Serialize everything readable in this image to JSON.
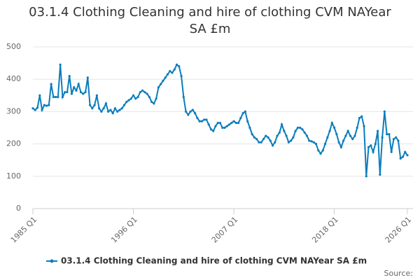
{
  "chart_data": {
    "type": "line",
    "title": "03.1.4 Clothing Cleaning and hire of clothing CVM NAYear SA £m",
    "source": "Source:",
    "categories": [
      "1985 Q1",
      null,
      null,
      null,
      null,
      null,
      null,
      null,
      null,
      null,
      null,
      null,
      null,
      null,
      null,
      null,
      null,
      null,
      null,
      null,
      null,
      null,
      null,
      null,
      null,
      null,
      null,
      null,
      null,
      null,
      null,
      null,
      null,
      null,
      null,
      null,
      null,
      null,
      null,
      null,
      null,
      null,
      null,
      null,
      "1996 Q1",
      null,
      null,
      null,
      null,
      null,
      null,
      null,
      null,
      null,
      null,
      null,
      null,
      null,
      null,
      null,
      null,
      null,
      null,
      null,
      null,
      null,
      null,
      null,
      null,
      null,
      null,
      null,
      null,
      null,
      null,
      null,
      null,
      null,
      null,
      null,
      null,
      null,
      null,
      null,
      null,
      null,
      null,
      null,
      "2007 Q1",
      null,
      null,
      null,
      null,
      null,
      null,
      null,
      null,
      null,
      null,
      null,
      null,
      null,
      null,
      null,
      null,
      null,
      null,
      null,
      null,
      null,
      null,
      null,
      null,
      null,
      null,
      null,
      null,
      null,
      null,
      null,
      null,
      null,
      null,
      null,
      null,
      null,
      null,
      null,
      null,
      null,
      null,
      null,
      "2018 Q1",
      null,
      null,
      null,
      null,
      null,
      null,
      null,
      null,
      null,
      null,
      null,
      null,
      null,
      null,
      null,
      null,
      null,
      null,
      null,
      null,
      null,
      null,
      null,
      null,
      null,
      null,
      null,
      null,
      null,
      null,
      null,
      "2026 Q1"
    ],
    "series": [
      {
        "name": "03.1.4 Clothing Cleaning and hire of clothing CVM NAYear SA £m",
        "color": "#0b7dbd",
        "values": [
          310,
          305,
          312,
          350,
          305,
          320,
          318,
          320,
          385,
          345,
          345,
          345,
          445,
          345,
          360,
          360,
          410,
          355,
          375,
          365,
          385,
          360,
          355,
          360,
          405,
          320,
          310,
          320,
          350,
          310,
          300,
          310,
          325,
          300,
          305,
          295,
          310,
          300,
          305,
          310,
          320,
          330,
          335,
          340,
          350,
          340,
          345,
          360,
          365,
          360,
          355,
          345,
          330,
          325,
          340,
          375,
          385,
          395,
          405,
          415,
          425,
          420,
          430,
          445,
          440,
          410,
          345,
          300,
          290,
          300,
          305,
          295,
          280,
          270,
          270,
          275,
          275,
          260,
          245,
          240,
          255,
          265,
          265,
          250,
          250,
          255,
          260,
          265,
          270,
          265,
          265,
          280,
          295,
          300,
          270,
          250,
          230,
          220,
          215,
          205,
          205,
          215,
          225,
          220,
          210,
          195,
          205,
          225,
          235,
          260,
          240,
          225,
          205,
          210,
          220,
          240,
          250,
          250,
          245,
          235,
          225,
          210,
          208,
          205,
          200,
          180,
          170,
          180,
          200,
          220,
          240,
          265,
          250,
          230,
          205,
          190,
          210,
          225,
          240,
          225,
          215,
          225,
          250,
          280,
          285,
          255,
          100,
          190,
          195,
          175,
          200,
          240,
          105,
          220,
          300,
          230,
          230,
          175,
          215,
          220,
          210,
          155,
          160,
          175,
          165
        ]
      }
    ],
    "ylim": [
      0,
      500
    ],
    "yticks": [
      0,
      100,
      200,
      300,
      400,
      500
    ],
    "grid": true
  }
}
